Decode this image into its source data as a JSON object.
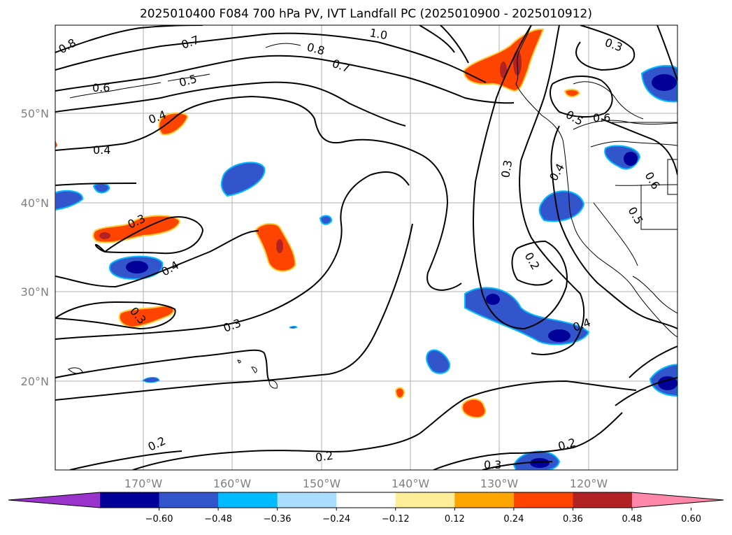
{
  "title": "2025010400 F084 700 hPa PV, IVT Landfall PC (2025010900 - 2025010912)",
  "lat_labels": [
    "50°N",
    "40°N",
    "30°N",
    "20°N"
  ],
  "lon_labels": [
    "170°W",
    "160°W",
    "150°W",
    "140°W",
    "130°W",
    "120°W"
  ],
  "contour_labels": [
    "0.8",
    "0.7",
    "0.8",
    "0.7",
    "1.0",
    "0.3",
    "0.6",
    "0.5",
    "0.4",
    "0.4",
    "0.5",
    "0.6",
    "0.3",
    "0.4",
    "0.6",
    "0.5",
    "0.3",
    "0.4",
    "0.2",
    "0.3",
    "0.4",
    "0.3",
    "0.2",
    "0.2",
    "0.3",
    "0.2"
  ],
  "colorbar": {
    "ticks": [
      "−0.60",
      "−0.48",
      "−0.36",
      "−0.24",
      "−0.12",
      "0.12",
      "0.24",
      "0.36",
      "0.48",
      "0.60"
    ],
    "colors": [
      "#9933cc",
      "#000099",
      "#3355cc",
      "#00bbff",
      "#aaddff",
      "#ffffff",
      "#ffee99",
      "#ffa500",
      "#ff4400",
      "#b22222",
      "#ff88aa"
    ]
  }
}
